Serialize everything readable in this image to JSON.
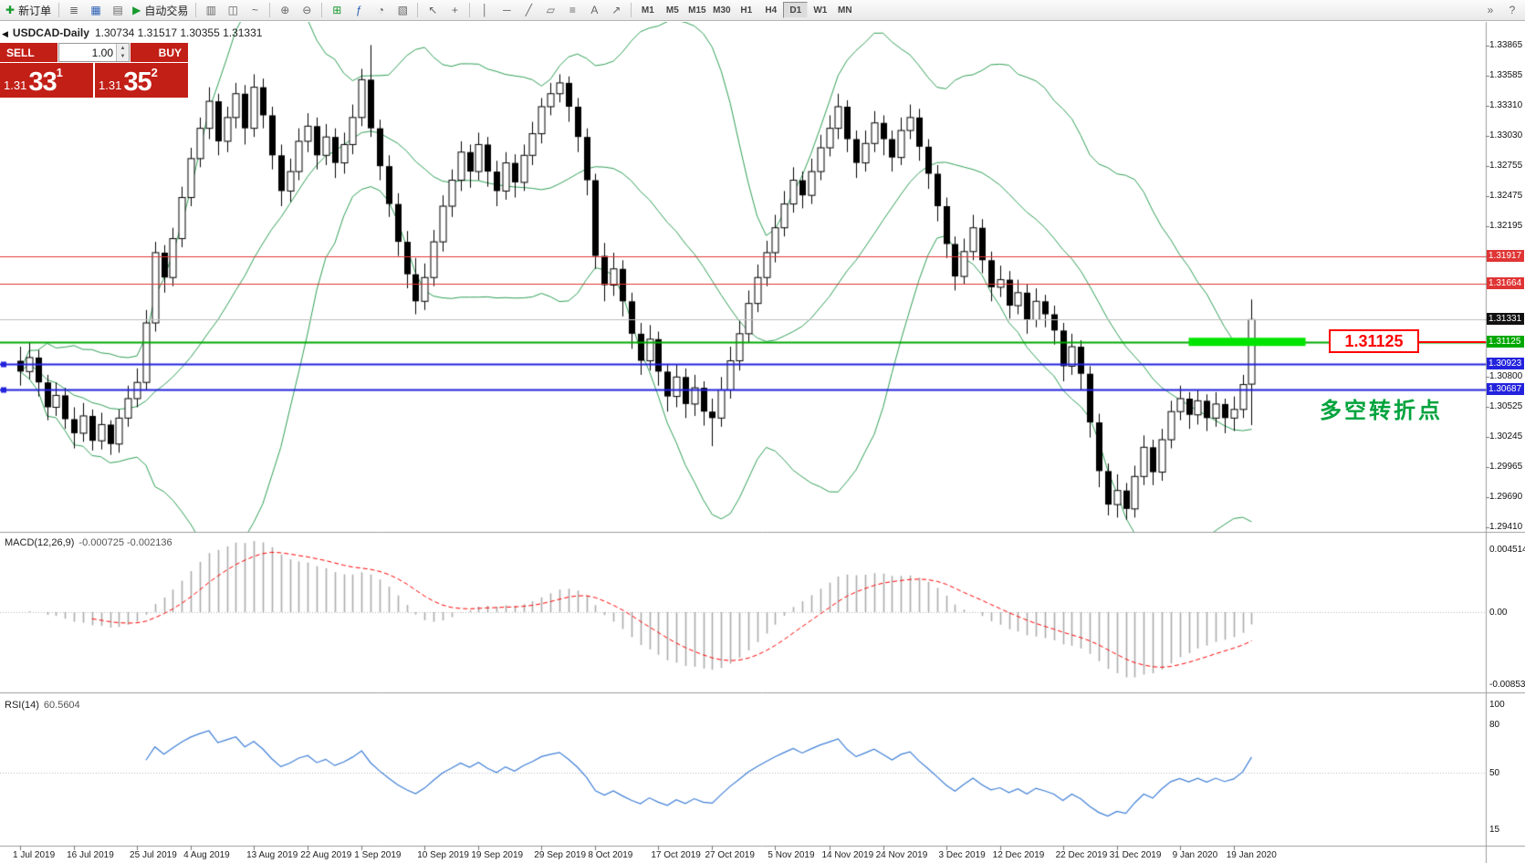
{
  "toolbar": {
    "new_order": "新订单",
    "auto_trading": "自动交易",
    "timeframes": [
      "M1",
      "M5",
      "M15",
      "M30",
      "H1",
      "H4",
      "D1",
      "W1",
      "MN"
    ],
    "active_timeframe": "D1",
    "icons": {
      "new_order": "✚",
      "market_watch": "≣",
      "data_window": "▦",
      "navigator": "▤",
      "auto_trading": "▶",
      "bar_chart": "▥",
      "candlestick_chart": "◫",
      "line_chart": "~",
      "zoom_in": "⊕",
      "zoom_out": "⊖",
      "tile_windows": "⊞",
      "indicators": "ƒ",
      "periods": "◔",
      "templates": "▧",
      "cursor": "↖",
      "crosshair": "+",
      "vertical_line": "│",
      "horizontal_line": "─",
      "trendline": "╱",
      "channel": "▱",
      "gann": "≡",
      "text": "A",
      "arrow": "↗",
      "overflow": "»",
      "help": "?"
    }
  },
  "chart": {
    "title": "USDCAD-Daily",
    "ohlc": "1.30734 1.31517 1.30355 1.31331",
    "collapse_icon": "◀",
    "trade_panel": {
      "sell_label": "SELL",
      "buy_label": "BUY",
      "lot": "1.00",
      "spin_up": "▲",
      "spin_down": "▼",
      "sell_price_prefix": "1.31",
      "sell_price_big": "33",
      "sell_price_sup": "1",
      "buy_price_prefix": "1.31",
      "buy_price_big": "35",
      "buy_price_sup": "2"
    },
    "callout": "1.31125",
    "annotation": "多空转折点"
  },
  "chart_data": {
    "type": "candlestick",
    "symbol": "USDCAD",
    "period": "Daily",
    "bollinger": {
      "period": 20,
      "deviation": 2,
      "color": "#2f9e55"
    },
    "candles": [
      [
        1.3095,
        1.3108,
        1.3072,
        1.3085
      ],
      [
        1.3085,
        1.3112,
        1.3078,
        1.3098
      ],
      [
        1.3098,
        1.3105,
        1.3062,
        1.3075
      ],
      [
        1.3075,
        1.3082,
        1.304,
        1.3052
      ],
      [
        1.3052,
        1.3075,
        1.3044,
        1.3063
      ],
      [
        1.3063,
        1.307,
        1.3032,
        1.3041
      ],
      [
        1.3041,
        1.3052,
        1.3014,
        1.3028
      ],
      [
        1.3028,
        1.3056,
        1.302,
        1.3044
      ],
      [
        1.3044,
        1.305,
        1.3012,
        1.3021
      ],
      [
        1.3021,
        1.3047,
        1.3013,
        1.3036
      ],
      [
        1.3036,
        1.304,
        1.3008,
        1.3018
      ],
      [
        1.3018,
        1.305,
        1.301,
        1.3042
      ],
      [
        1.3042,
        1.3072,
        1.3034,
        1.306
      ],
      [
        1.306,
        1.3088,
        1.3052,
        1.3075
      ],
      [
        1.3075,
        1.3142,
        1.3068,
        1.313
      ],
      [
        1.313,
        1.3205,
        1.3122,
        1.3195
      ],
      [
        1.3195,
        1.3202,
        1.3158,
        1.3172
      ],
      [
        1.3172,
        1.3218,
        1.3164,
        1.3208
      ],
      [
        1.3208,
        1.3256,
        1.32,
        1.3246
      ],
      [
        1.3246,
        1.3292,
        1.3238,
        1.3282
      ],
      [
        1.3282,
        1.332,
        1.3274,
        1.331
      ],
      [
        1.331,
        1.3348,
        1.33,
        1.3335
      ],
      [
        1.3335,
        1.3342,
        1.3285,
        1.3298
      ],
      [
        1.3298,
        1.333,
        1.3288,
        1.332
      ],
      [
        1.332,
        1.3352,
        1.331,
        1.3342
      ],
      [
        1.3342,
        1.335,
        1.3295,
        1.331
      ],
      [
        1.331,
        1.336,
        1.3302,
        1.3348
      ],
      [
        1.3348,
        1.3356,
        1.331,
        1.3322
      ],
      [
        1.3322,
        1.333,
        1.3272,
        1.3285
      ],
      [
        1.3285,
        1.3295,
        1.3238,
        1.3252
      ],
      [
        1.3252,
        1.3282,
        1.3242,
        1.327
      ],
      [
        1.327,
        1.331,
        1.3262,
        1.3298
      ],
      [
        1.3298,
        1.3324,
        1.3288,
        1.3312
      ],
      [
        1.3312,
        1.332,
        1.3272,
        1.3285
      ],
      [
        1.3285,
        1.3314,
        1.3276,
        1.3302
      ],
      [
        1.3302,
        1.331,
        1.3264,
        1.3278
      ],
      [
        1.3278,
        1.3306,
        1.3268,
        1.3295
      ],
      [
        1.3295,
        1.3332,
        1.3286,
        1.332
      ],
      [
        1.332,
        1.3365,
        1.3312,
        1.3355
      ],
      [
        1.3355,
        1.3387,
        1.3302,
        1.331
      ],
      [
        1.331,
        1.3318,
        1.3262,
        1.3275
      ],
      [
        1.3275,
        1.3285,
        1.3228,
        1.324
      ],
      [
        1.324,
        1.325,
        1.3192,
        1.3205
      ],
      [
        1.3205,
        1.3215,
        1.3162,
        1.3175
      ],
      [
        1.3175,
        1.319,
        1.3138,
        1.315
      ],
      [
        1.315,
        1.3185,
        1.3142,
        1.3172
      ],
      [
        1.3172,
        1.3216,
        1.3164,
        1.3205
      ],
      [
        1.3205,
        1.3248,
        1.3196,
        1.3238
      ],
      [
        1.3238,
        1.3272,
        1.3228,
        1.3262
      ],
      [
        1.3262,
        1.3298,
        1.3252,
        1.3288
      ],
      [
        1.3288,
        1.3295,
        1.3255,
        1.327
      ],
      [
        1.327,
        1.3306,
        1.3262,
        1.3295
      ],
      [
        1.3295,
        1.3302,
        1.3256,
        1.327
      ],
      [
        1.327,
        1.328,
        1.3238,
        1.3252
      ],
      [
        1.3252,
        1.3288,
        1.3244,
        1.3278
      ],
      [
        1.3278,
        1.3286,
        1.3246,
        1.326
      ],
      [
        1.326,
        1.3295,
        1.3252,
        1.3285
      ],
      [
        1.3285,
        1.3316,
        1.3276,
        1.3305
      ],
      [
        1.3305,
        1.3338,
        1.3296,
        1.333
      ],
      [
        1.333,
        1.3352,
        1.3322,
        1.3342
      ],
      [
        1.3342,
        1.336,
        1.3334,
        1.3352
      ],
      [
        1.3352,
        1.3358,
        1.3316,
        1.333
      ],
      [
        1.333,
        1.3338,
        1.3288,
        1.3302
      ],
      [
        1.3302,
        1.331,
        1.3248,
        1.3262
      ],
      [
        1.3262,
        1.3268,
        1.318,
        1.3192
      ],
      [
        1.3192,
        1.3204,
        1.315,
        1.3165
      ],
      [
        1.3165,
        1.3195,
        1.3155,
        1.318
      ],
      [
        1.318,
        1.3188,
        1.3136,
        1.315
      ],
      [
        1.315,
        1.3158,
        1.3106,
        1.312
      ],
      [
        1.312,
        1.313,
        1.3082,
        1.3095
      ],
      [
        1.3095,
        1.3128,
        1.3086,
        1.3115
      ],
      [
        1.3115,
        1.3122,
        1.3072,
        1.3085
      ],
      [
        1.3085,
        1.3092,
        1.3048,
        1.3062
      ],
      [
        1.3062,
        1.3092,
        1.3052,
        1.308
      ],
      [
        1.308,
        1.3088,
        1.3042,
        1.3055
      ],
      [
        1.3055,
        1.3082,
        1.3044,
        1.307
      ],
      [
        1.307,
        1.3076,
        1.3035,
        1.3048
      ],
      [
        1.3048,
        1.306,
        1.3016,
        1.3042
      ],
      [
        1.3042,
        1.308,
        1.3034,
        1.3068
      ],
      [
        1.3068,
        1.3108,
        1.306,
        1.3095
      ],
      [
        1.3095,
        1.3132,
        1.3086,
        1.312
      ],
      [
        1.312,
        1.316,
        1.3112,
        1.3148
      ],
      [
        1.3148,
        1.3184,
        1.314,
        1.3172
      ],
      [
        1.3172,
        1.3206,
        1.3164,
        1.3195
      ],
      [
        1.3195,
        1.323,
        1.3186,
        1.3218
      ],
      [
        1.3218,
        1.3252,
        1.321,
        1.324
      ],
      [
        1.324,
        1.3274,
        1.3232,
        1.3262
      ],
      [
        1.3262,
        1.327,
        1.3236,
        1.3248
      ],
      [
        1.3248,
        1.3282,
        1.324,
        1.327
      ],
      [
        1.327,
        1.3304,
        1.3262,
        1.3292
      ],
      [
        1.3292,
        1.3322,
        1.3284,
        1.331
      ],
      [
        1.331,
        1.3342,
        1.33,
        1.333
      ],
      [
        1.333,
        1.3336,
        1.3288,
        1.33
      ],
      [
        1.33,
        1.3308,
        1.3264,
        1.3278
      ],
      [
        1.3278,
        1.3308,
        1.327,
        1.3296
      ],
      [
        1.3296,
        1.3326,
        1.3288,
        1.3315
      ],
      [
        1.3315,
        1.3322,
        1.3285,
        1.33
      ],
      [
        1.33,
        1.3308,
        1.327,
        1.3283
      ],
      [
        1.3283,
        1.332,
        1.3276,
        1.3308
      ],
      [
        1.3308,
        1.3332,
        1.33,
        1.332
      ],
      [
        1.332,
        1.3328,
        1.328,
        1.3293
      ],
      [
        1.3293,
        1.33,
        1.3254,
        1.3268
      ],
      [
        1.3268,
        1.3276,
        1.3224,
        1.3238
      ],
      [
        1.3238,
        1.3246,
        1.319,
        1.3203
      ],
      [
        1.3203,
        1.321,
        1.316,
        1.3173
      ],
      [
        1.3173,
        1.3208,
        1.3166,
        1.3196
      ],
      [
        1.3196,
        1.323,
        1.3188,
        1.3218
      ],
      [
        1.3218,
        1.3226,
        1.3176,
        1.3188
      ],
      [
        1.3188,
        1.3196,
        1.315,
        1.3163
      ],
      [
        1.3163,
        1.3183,
        1.3154,
        1.317
      ],
      [
        1.317,
        1.3178,
        1.3134,
        1.3146
      ],
      [
        1.3146,
        1.317,
        1.3138,
        1.3158
      ],
      [
        1.3158,
        1.3166,
        1.312,
        1.3133
      ],
      [
        1.3133,
        1.3162,
        1.3126,
        1.315
      ],
      [
        1.315,
        1.3156,
        1.3126,
        1.3138
      ],
      [
        1.3138,
        1.3146,
        1.311,
        1.3123
      ],
      [
        1.3123,
        1.313,
        1.3076,
        1.309
      ],
      [
        1.309,
        1.312,
        1.3082,
        1.3108
      ],
      [
        1.3108,
        1.3114,
        1.3068,
        1.3083
      ],
      [
        1.3083,
        1.309,
        1.3024,
        1.3038
      ],
      [
        1.3038,
        1.3046,
        1.2978,
        1.2993
      ],
      [
        1.2993,
        1.3,
        1.2952,
        1.2962
      ],
      [
        1.2962,
        1.299,
        1.295,
        1.2975
      ],
      [
        1.2975,
        1.2982,
        1.2948,
        1.2958
      ],
      [
        1.2958,
        1.2998,
        1.295,
        1.2988
      ],
      [
        1.2988,
        1.3026,
        1.298,
        1.3015
      ],
      [
        1.3015,
        1.3022,
        1.298,
        1.2992
      ],
      [
        1.2992,
        1.3032,
        1.2984,
        1.3022
      ],
      [
        1.3022,
        1.3058,
        1.3014,
        1.3048
      ],
      [
        1.3048,
        1.3072,
        1.304,
        1.306
      ],
      [
        1.306,
        1.3066,
        1.3032,
        1.3045
      ],
      [
        1.3045,
        1.3068,
        1.3036,
        1.3058
      ],
      [
        1.3058,
        1.3064,
        1.303,
        1.3042
      ],
      [
        1.3042,
        1.3066,
        1.3034,
        1.3055
      ],
      [
        1.3055,
        1.306,
        1.3028,
        1.3042
      ],
      [
        1.3042,
        1.3062,
        1.303,
        1.305
      ],
      [
        1.305,
        1.3082,
        1.3042,
        1.3073
      ],
      [
        1.30734,
        1.31517,
        1.30355,
        1.31331
      ]
    ],
    "hlines": [
      {
        "price": 1.31917,
        "color": "#e03535",
        "width": 1
      },
      {
        "price": 1.31664,
        "color": "#e03535",
        "width": 1
      },
      {
        "price": 1.31331,
        "color": "#bdbdbd",
        "width": 1
      },
      {
        "price": 1.31125,
        "color": "#00a800",
        "width": 2
      },
      {
        "price": 1.30923,
        "color": "#2323dd",
        "width": 2,
        "handles": true
      },
      {
        "price": 1.30687,
        "color": "#2323dd",
        "width": 2,
        "handles": true
      }
    ],
    "highlight_bar": {
      "price": 1.31125,
      "from_index": 130,
      "to_index": 143,
      "color": "#00e400"
    },
    "price_axis": {
      "labels": [
        {
          "text": "1.33865",
          "style": "plain"
        },
        {
          "text": "1.33585",
          "style": "plain"
        },
        {
          "text": "1.33310",
          "style": "plain"
        },
        {
          "text": "1.33030",
          "style": "plain"
        },
        {
          "text": "1.32755",
          "style": "plain"
        },
        {
          "text": "1.32475",
          "style": "plain"
        },
        {
          "text": "1.32195",
          "style": "plain"
        },
        {
          "text": "1.31917",
          "style": "red"
        },
        {
          "text": "1.31664",
          "style": "red"
        },
        {
          "text": "1.31331",
          "style": "current"
        },
        {
          "text": "1.31125",
          "style": "green"
        },
        {
          "text": "1.30923",
          "style": "blue"
        },
        {
          "text": "1.30800",
          "style": "plain"
        },
        {
          "text": "1.30687",
          "style": "blue"
        },
        {
          "text": "1.30525",
          "style": "plain"
        },
        {
          "text": "1.30245",
          "style": "plain"
        },
        {
          "text": "1.29965",
          "style": "plain"
        },
        {
          "text": "1.29690",
          "style": "plain"
        },
        {
          "text": "1.29410",
          "style": "plain"
        }
      ]
    },
    "macd": {
      "name": "MACD(12,26,9)",
      "values_text": "-0.000725 -0.002136",
      "fast": 12,
      "slow": 26,
      "signal": 9,
      "axis_labels": [
        "0.004514",
        "0.00",
        "-0.008533"
      ],
      "histogram_color": "#ababab",
      "signal_color": "#ff0000"
    },
    "rsi": {
      "name": "RSI(14)",
      "value_text": "60.5604",
      "period": 14,
      "axis_labels": [
        "100",
        "80",
        "50",
        "15"
      ],
      "line_color": "#3f7fd6",
      "level": 50
    },
    "x_axis": {
      "labels": [
        {
          "text": "1 Jul 2019",
          "index": 0
        },
        {
          "text": "16 Jul 2019",
          "index": 6
        },
        {
          "text": "25 Jul 2019",
          "index": 13
        },
        {
          "text": "4 Aug 2019",
          "index": 19
        },
        {
          "text": "13 Aug 2019",
          "index": 26
        },
        {
          "text": "22 Aug 2019",
          "index": 32
        },
        {
          "text": "1 Sep 2019",
          "index": 38
        },
        {
          "text": "10 Sep 2019",
          "index": 45
        },
        {
          "text": "19 Sep 2019",
          "index": 51
        },
        {
          "text": "29 Sep 2019",
          "index": 58
        },
        {
          "text": "8 Oct 2019",
          "index": 64
        },
        {
          "text": "17 Oct 2019",
          "index": 71
        },
        {
          "text": "27 Oct 2019",
          "index": 77
        },
        {
          "text": "5 Nov 2019",
          "index": 84
        },
        {
          "text": "14 Nov 2019",
          "index": 90
        },
        {
          "text": "24 Nov 2019",
          "index": 96
        },
        {
          "text": "3 Dec 2019",
          "index": 103
        },
        {
          "text": "12 Dec 2019",
          "index": 109
        },
        {
          "text": "22 Dec 2019",
          "index": 116
        },
        {
          "text": "31 Dec 2019",
          "index": 122
        },
        {
          "text": "9 Jan 2020",
          "index": 129
        },
        {
          "text": "19 Jan 2020",
          "index": 135
        }
      ]
    }
  }
}
